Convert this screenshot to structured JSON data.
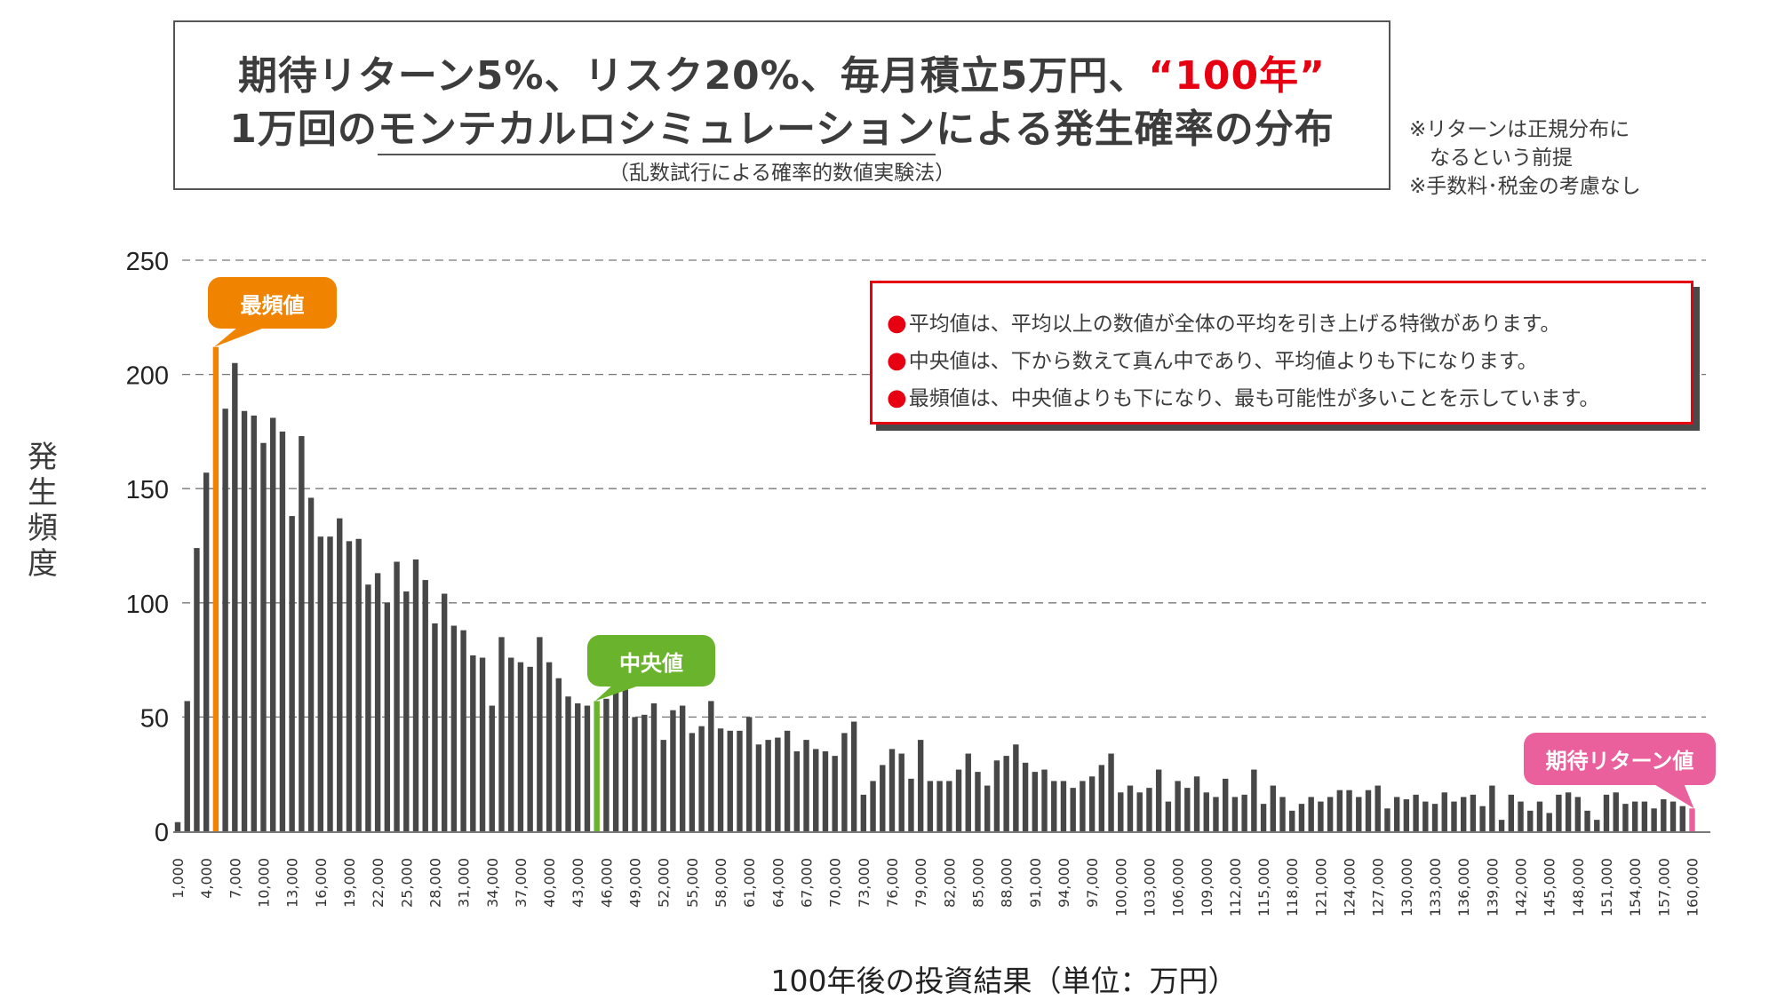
{
  "header": {
    "title_line1_prefix": "期待リターン5%、リスク20%、毎月積立5万円、",
    "title_line1_highlight": "“100年”",
    "title_line2_prefix": "1万回の",
    "title_line2_underlined": "モンテカルロシミュレーション",
    "title_line2_suffix": "による発生確率の分布",
    "subtitle": "（乱数試行による確率的数値実験法）"
  },
  "side_notes": [
    "※リターンは正規分布に",
    "　なるという前提",
    "※手数料･税金の考慮なし"
  ],
  "note_box": {
    "lines": [
      "平均値は、平均以上の数値が全体の平均を引き上げる特徴があります。",
      "中央値は、下から数えて真ん中であり、平均値よりも下になります。",
      "最頻値は、中央値よりも下になり、最も可能性が多いことを示しています。"
    ],
    "bullet": "●"
  },
  "callouts": {
    "mode": "最頻値",
    "median": "中央値",
    "expected": "期待リターン値"
  },
  "colors": {
    "bar": "#474747",
    "mode": "#f08300",
    "median": "#6ab42d",
    "expected": "#e9609d",
    "accent_red": "#e60012"
  },
  "chart_data": {
    "type": "bar",
    "title": "",
    "xlabel": "100年後の投資結果（単位：万円）",
    "ylabel": "発生頻度",
    "ylim": [
      0,
      250
    ],
    "yticks": [
      0,
      50,
      100,
      150,
      200,
      250
    ],
    "grid": "horizontal dashed",
    "x_start": 1000,
    "x_step": 1000,
    "x_label_every": 3,
    "highlight": {
      "mode_x": 5000,
      "median_x": 45000,
      "expected_x": 160000
    },
    "values": [
      4,
      57,
      124,
      157,
      212,
      185,
      205,
      184,
      182,
      170,
      181,
      175,
      138,
      173,
      146,
      129,
      129,
      137,
      127,
      128,
      108,
      113,
      100,
      118,
      105,
      119,
      110,
      91,
      104,
      90,
      88,
      77,
      76,
      55,
      85,
      76,
      74,
      72,
      85,
      74,
      67,
      59,
      56,
      55,
      57,
      58,
      61,
      62,
      50,
      51,
      56,
      40,
      53,
      55,
      43,
      46,
      57,
      45,
      44,
      44,
      50,
      38,
      40,
      41,
      44,
      35,
      40,
      36,
      35,
      33,
      43,
      48,
      16,
      22,
      29,
      36,
      34,
      23,
      40,
      22,
      22,
      22,
      27,
      34,
      26,
      20,
      31,
      33,
      38,
      30,
      26,
      27,
      22,
      22,
      19,
      22,
      24,
      29,
      34,
      17,
      20,
      17,
      19,
      27,
      13,
      22,
      19,
      24,
      17,
      15,
      23,
      15,
      16,
      27,
      12,
      20,
      15,
      9,
      12,
      15,
      13,
      15,
      18,
      18,
      15,
      18,
      20,
      10,
      15,
      14,
      16,
      13,
      12,
      17,
      13,
      15,
      16,
      11,
      20,
      5,
      16,
      13,
      9,
      13,
      8,
      16,
      17,
      15,
      9,
      5,
      16,
      17,
      12,
      13,
      13,
      10,
      14,
      13,
      11,
      10
    ]
  }
}
